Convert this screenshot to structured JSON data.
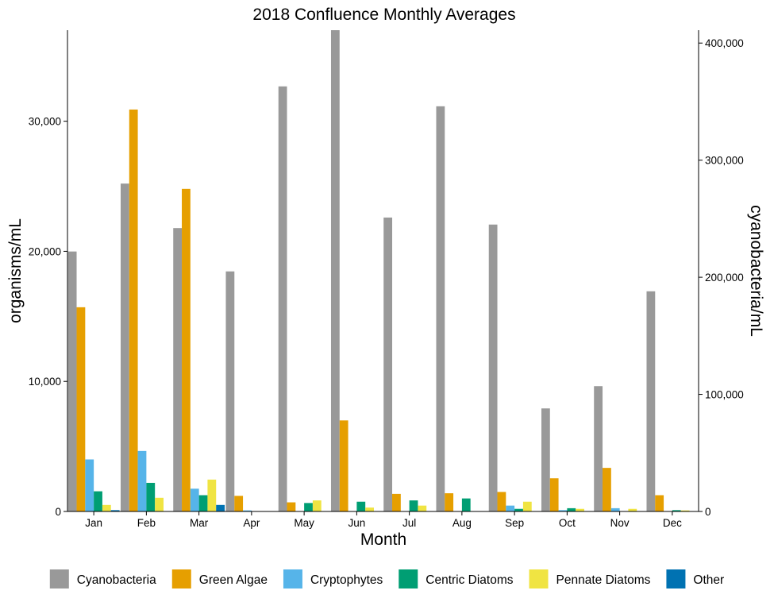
{
  "chart_data": {
    "type": "bar",
    "title": "2018 Confluence Monthly Averages",
    "xlabel": "Month",
    "ylabel": "organisms/mL",
    "y2label": "cyanobacteria/mL",
    "categories": [
      "Jan",
      "Feb",
      "Mar",
      "Apr",
      "May",
      "Jun",
      "Jul",
      "Aug",
      "Sep",
      "Oct",
      "Nov",
      "Dec"
    ],
    "ylim": [
      0,
      37000
    ],
    "yticks": [
      0,
      10000,
      20000,
      30000
    ],
    "ytick_labels": [
      "0",
      "10,000",
      "20,000",
      "30,000"
    ],
    "y2lim": [
      0,
      411000
    ],
    "y2ticks": [
      0,
      100000,
      200000,
      300000,
      400000
    ],
    "y2tick_labels": [
      "0",
      "100,000",
      "200,000",
      "300,000",
      "400,000"
    ],
    "legend_position": "bottom",
    "grid": false,
    "series": [
      {
        "name": "Cyanobacteria",
        "axis": "right",
        "color": "#999999",
        "values": [
          222000,
          280000,
          242000,
          205000,
          363000,
          411000,
          251000,
          346000,
          245000,
          88000,
          107000,
          188000
        ]
      },
      {
        "name": "Green Algae",
        "axis": "left",
        "color": "#E69F00",
        "values": [
          15700,
          30900,
          24800,
          1200,
          700,
          7000,
          1350,
          1400,
          1500,
          2550,
          3350,
          1250
        ]
      },
      {
        "name": "Cryptophytes",
        "axis": "left",
        "color": "#56B4E9",
        "values": [
          4000,
          4650,
          1750,
          80,
          0,
          0,
          0,
          0,
          450,
          100,
          250,
          0
        ]
      },
      {
        "name": "Centric Diatoms",
        "axis": "left",
        "color": "#009E73",
        "values": [
          1550,
          2200,
          1250,
          0,
          650,
          750,
          850,
          1000,
          200,
          250,
          0,
          100
        ]
      },
      {
        "name": "Pennate Diatoms",
        "axis": "left",
        "color": "#F0E442",
        "values": [
          500,
          1050,
          2450,
          0,
          850,
          300,
          450,
          0,
          750,
          200,
          200,
          80
        ]
      },
      {
        "name": "Other",
        "axis": "left",
        "color": "#0072B2",
        "values": [
          100,
          0,
          500,
          0,
          0,
          0,
          0,
          0,
          0,
          0,
          0,
          0
        ]
      }
    ]
  }
}
